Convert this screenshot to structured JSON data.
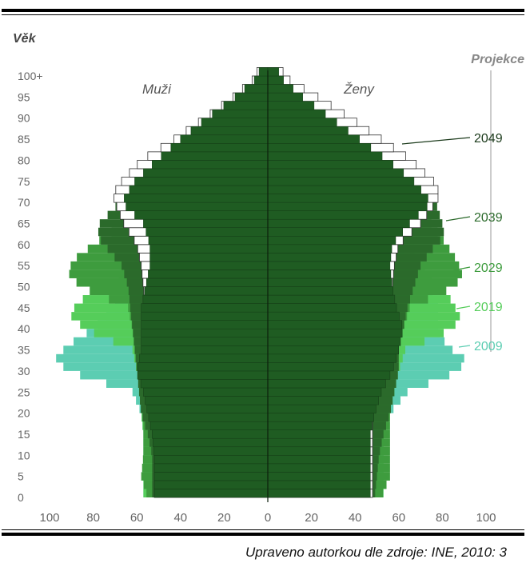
{
  "chart_data": {
    "type": "population-pyramid",
    "ylabel": "Věk",
    "left_label": "Muži",
    "right_label": "Ženy",
    "projection_label": "Projekce",
    "y_ticks": [
      "0",
      "5",
      "10",
      "15",
      "20",
      "25",
      "30",
      "35",
      "40",
      "45",
      "50",
      "55",
      "60",
      "65",
      "70",
      "75",
      "80",
      "85",
      "90",
      "95",
      "100+"
    ],
    "x_ticks": [
      "100",
      "80",
      "60",
      "40",
      "20",
      "0",
      "20",
      "40",
      "60",
      "80",
      "100"
    ],
    "x_range": [
      0,
      100
    ],
    "age_range": [
      0,
      100
    ],
    "series": [
      {
        "name": "2009",
        "color": "#5ccdb2",
        "ages": [
          0,
          5,
          10,
          15,
          20,
          25,
          30,
          33,
          36,
          40,
          45,
          50,
          55,
          60,
          65,
          70,
          75,
          80,
          85,
          90,
          95,
          100
        ],
        "male": [
          57,
          57,
          57,
          57,
          58,
          62,
          92,
          97,
          92,
          80,
          70,
          60,
          54,
          53,
          50,
          50,
          47,
          40,
          32,
          22,
          12,
          4
        ],
        "female": [
          53,
          53,
          53,
          53,
          56,
          64,
          88,
          90,
          82,
          78,
          78,
          72,
          65,
          62,
          62,
          60,
          55,
          48,
          38,
          26,
          15,
          5
        ]
      },
      {
        "name": "2019",
        "color": "#55cd5a",
        "ages": [
          0,
          5,
          10,
          15,
          20,
          25,
          30,
          35,
          40,
          43,
          46,
          50,
          55,
          60,
          65,
          70,
          75,
          80,
          85,
          90,
          95,
          100
        ],
        "male": [
          57,
          57,
          57,
          57,
          58,
          58,
          60,
          62,
          84,
          90,
          88,
          75,
          64,
          57,
          52,
          52,
          48,
          42,
          34,
          24,
          14,
          4
        ],
        "female": [
          53,
          53,
          53,
          53,
          55,
          58,
          60,
          63,
          85,
          88,
          85,
          80,
          72,
          66,
          62,
          62,
          57,
          50,
          40,
          28,
          16,
          5
        ]
      },
      {
        "name": "2029",
        "color": "#3e9c3e",
        "ages": [
          0,
          5,
          10,
          15,
          20,
          25,
          30,
          35,
          40,
          45,
          50,
          53,
          56,
          60,
          65,
          70,
          75,
          80,
          85,
          90,
          95,
          100
        ],
        "male": [
          55,
          58,
          57,
          57,
          57,
          58,
          58,
          60,
          62,
          64,
          86,
          91,
          90,
          80,
          66,
          58,
          52,
          44,
          36,
          25,
          14,
          4
        ],
        "female": [
          52,
          56,
          56,
          56,
          56,
          57,
          58,
          60,
          62,
          65,
          86,
          89,
          87,
          82,
          75,
          70,
          62,
          52,
          42,
          30,
          17,
          5
        ]
      },
      {
        "name": "2039",
        "color": "#2b6a2b",
        "ages": [
          0,
          5,
          10,
          15,
          20,
          25,
          30,
          35,
          40,
          45,
          50,
          55,
          60,
          62,
          65,
          70,
          75,
          80,
          85,
          90,
          95,
          100
        ],
        "male": [
          53,
          53,
          53,
          55,
          58,
          59,
          60,
          61,
          62,
          63,
          64,
          67,
          75,
          78,
          77,
          68,
          58,
          48,
          38,
          27,
          15,
          4
        ],
        "female": [
          49,
          50,
          51,
          53,
          56,
          58,
          60,
          60,
          62,
          64,
          67,
          70,
          77,
          81,
          80,
          77,
          70,
          58,
          46,
          33,
          19,
          6
        ]
      },
      {
        "name": "2049",
        "color": "#ffffff",
        "ages": [
          0,
          5,
          10,
          15,
          20,
          25,
          30,
          35,
          40,
          45,
          50,
          55,
          60,
          65,
          70,
          72,
          75,
          80,
          85,
          90,
          95,
          100
        ],
        "male": [
          52,
          52,
          52,
          52,
          52,
          52,
          53,
          55,
          56,
          56,
          57,
          58,
          60,
          66,
          70,
          71,
          67,
          58,
          43,
          29,
          16,
          5
        ],
        "female": [
          48,
          48,
          48,
          48,
          48,
          49,
          50,
          51,
          53,
          55,
          57,
          58,
          60,
          70,
          77,
          79,
          76,
          66,
          52,
          38,
          23,
          7
        ]
      }
    ],
    "core": {
      "color": "#1f5c22",
      "ages": [
        0,
        5,
        10,
        15,
        20,
        25,
        30,
        35,
        40,
        45,
        50,
        55,
        60,
        65,
        70,
        75,
        80,
        85,
        90,
        95,
        100
      ],
      "male": [
        52,
        52,
        52,
        53,
        55,
        57,
        60,
        58,
        58,
        58,
        56,
        54,
        54,
        57,
        67,
        61,
        51,
        40,
        28,
        15,
        4
      ],
      "female": [
        47,
        47,
        47,
        47,
        49,
        52,
        57,
        60,
        62,
        59,
        57,
        56,
        57,
        65,
        75,
        67,
        55,
        42,
        29,
        16,
        5
      ]
    }
  },
  "legend_label_colors": {
    "2049": "#1b3a1b",
    "2039": "#2b6a2b",
    "2029": "#3e9c3e",
    "2019": "#55cd5a",
    "2009": "#5ccdb2"
  },
  "caption": "Upraveno autorkou dle zdroje: INE, 2010: 3"
}
